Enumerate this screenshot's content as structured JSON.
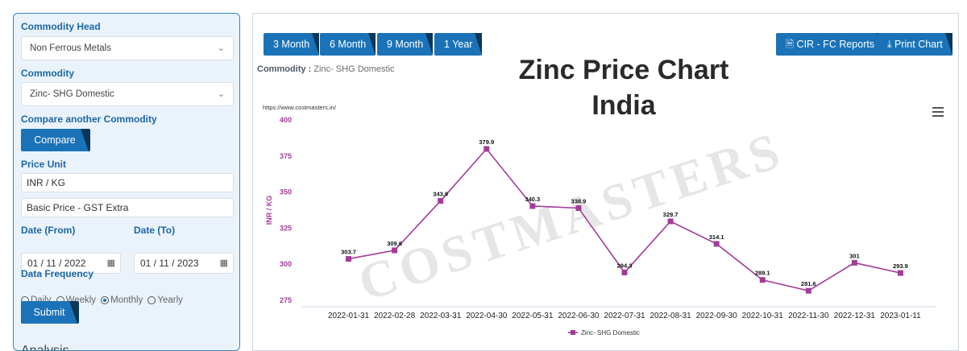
{
  "sidebar": {
    "commodity_head_label": "Commodity Head",
    "commodity_head_value": "Non Ferrous Metals",
    "commodity_label": "Commodity",
    "commodity_value": "Zinc- SHG Domestic",
    "compare_label": "Compare another Commodity",
    "compare_button": "Compare",
    "price_unit_label": "Price Unit",
    "price_unit_value": "INR / KG",
    "price_basis_value": "Basic Price - GST Extra",
    "date_from_label": "Date (From)",
    "date_from_value": "01 / 11 / 2022",
    "date_to_label": "Date (To)",
    "date_to_value": "01 / 11 / 2023",
    "frequency_label": "Data Frequency",
    "frequency_options": [
      "Daily",
      "Weekly",
      "Monthly",
      "Yearly"
    ],
    "frequency_selected": "Monthly",
    "submit_button": "Submit",
    "analysis_label": "Analysis"
  },
  "toolbar": {
    "range_buttons": [
      "3 Month",
      "6 Month",
      "9 Month",
      "1 Year"
    ],
    "cir_button": "CIR - FC Reports",
    "print_button": "Print Chart"
  },
  "commodity_line": {
    "label": "Commodity :",
    "value": "Zinc- SHG Domestic"
  },
  "overlay_title": "Zinc Price Chart India",
  "source_url": "https://www.costmasters.in/",
  "watermark": "COSTMASTERS",
  "colors": {
    "accent": "#1a73b8",
    "series": "#a33c98",
    "label": "#1b67a8"
  },
  "chart_data": {
    "type": "line",
    "categories": [
      "2022-01-31",
      "2022-02-28",
      "2022-03-31",
      "2022-04-30",
      "2022-05-31",
      "2022-06-30",
      "2022-07-31",
      "2022-08-31",
      "2022-09-30",
      "2022-10-31",
      "2022-11-30",
      "2022-12-31",
      "2023-01-11"
    ],
    "series": [
      {
        "name": "Zinc- SHG Domestic",
        "values": [
          303.7,
          309.6,
          343.9,
          379.9,
          340.3,
          338.9,
          294.3,
          329.7,
          314.1,
          289.1,
          281.6,
          301,
          293.9
        ]
      }
    ],
    "ylabel": "INR / KG",
    "yticks": [
      275,
      300,
      325,
      350,
      375,
      400
    ],
    "ylim": [
      275,
      400
    ],
    "grid": false,
    "legend": "bottom-center"
  }
}
